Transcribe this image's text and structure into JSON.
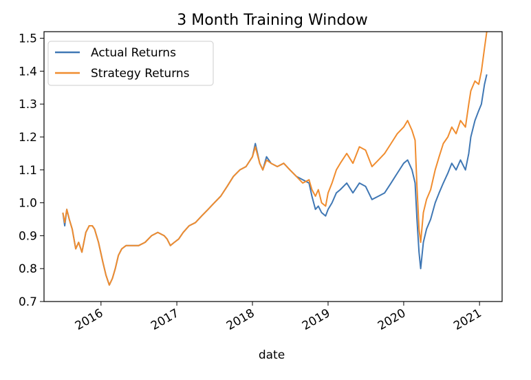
{
  "chart_data": {
    "type": "line",
    "title": "3 Month Training Window",
    "xlabel": "date",
    "ylabel": "",
    "ylim": [
      0.7,
      1.52
    ],
    "xlim": [
      "2015-04-01",
      "2021-04-20"
    ],
    "yticks": [
      0.7,
      0.8,
      0.9,
      1.0,
      1.1,
      1.2,
      1.3,
      1.4,
      1.5
    ],
    "ytick_labels": [
      "0.7",
      "0.8",
      "0.9",
      "1.0",
      "1.1",
      "1.2",
      "1.3",
      "1.4",
      "1.5"
    ],
    "xticks": [
      "2016-01-01",
      "2017-01-01",
      "2018-01-01",
      "2019-01-01",
      "2020-01-01",
      "2021-01-01"
    ],
    "xtick_labels": [
      "2016",
      "2017",
      "2018",
      "2019",
      "2020",
      "2021"
    ],
    "legend_position": "upper-left",
    "grid": false,
    "series": [
      {
        "name": "Actual Returns",
        "color": "#3f77b4",
        "points": [
          [
            "2015-07-01",
            0.97
          ],
          [
            "2015-07-10",
            0.93
          ],
          [
            "2015-07-20",
            0.98
          ],
          [
            "2015-08-01",
            0.95
          ],
          [
            "2015-08-15",
            0.92
          ],
          [
            "2015-09-01",
            0.86
          ],
          [
            "2015-09-15",
            0.88
          ],
          [
            "2015-10-01",
            0.85
          ],
          [
            "2015-10-20",
            0.91
          ],
          [
            "2015-11-05",
            0.93
          ],
          [
            "2015-11-20",
            0.93
          ],
          [
            "2015-12-01",
            0.92
          ],
          [
            "2015-12-20",
            0.88
          ],
          [
            "2016-01-10",
            0.82
          ],
          [
            "2016-01-25",
            0.78
          ],
          [
            "2016-02-10",
            0.75
          ],
          [
            "2016-02-25",
            0.77
          ],
          [
            "2016-03-10",
            0.8
          ],
          [
            "2016-03-25",
            0.84
          ],
          [
            "2016-04-10",
            0.86
          ],
          [
            "2016-05-01",
            0.87
          ],
          [
            "2016-06-01",
            0.87
          ],
          [
            "2016-07-01",
            0.87
          ],
          [
            "2016-08-01",
            0.88
          ],
          [
            "2016-09-01",
            0.9
          ],
          [
            "2016-10-01",
            0.91
          ],
          [
            "2016-11-01",
            0.9
          ],
          [
            "2016-11-15",
            0.89
          ],
          [
            "2016-12-01",
            0.87
          ],
          [
            "2016-12-20",
            0.88
          ],
          [
            "2017-01-10",
            0.89
          ],
          [
            "2017-02-01",
            0.91
          ],
          [
            "2017-03-01",
            0.93
          ],
          [
            "2017-04-01",
            0.94
          ],
          [
            "2017-05-01",
            0.96
          ],
          [
            "2017-06-01",
            0.98
          ],
          [
            "2017-07-01",
            1.0
          ],
          [
            "2017-08-01",
            1.02
          ],
          [
            "2017-09-01",
            1.05
          ],
          [
            "2017-10-01",
            1.08
          ],
          [
            "2017-11-01",
            1.1
          ],
          [
            "2017-12-01",
            1.11
          ],
          [
            "2018-01-01",
            1.14
          ],
          [
            "2018-01-15",
            1.18
          ],
          [
            "2018-02-05",
            1.12
          ],
          [
            "2018-02-20",
            1.1
          ],
          [
            "2018-03-10",
            1.14
          ],
          [
            "2018-04-01",
            1.12
          ],
          [
            "2018-05-01",
            1.11
          ],
          [
            "2018-06-01",
            1.12
          ],
          [
            "2018-07-01",
            1.1
          ],
          [
            "2018-08-01",
            1.08
          ],
          [
            "2018-09-01",
            1.07
          ],
          [
            "2018-10-01",
            1.06
          ],
          [
            "2018-10-15",
            1.02
          ],
          [
            "2018-11-01",
            0.98
          ],
          [
            "2018-11-15",
            0.99
          ],
          [
            "2018-12-01",
            0.97
          ],
          [
            "2018-12-20",
            0.96
          ],
          [
            "2019-01-01",
            0.98
          ],
          [
            "2019-01-20",
            1.0
          ],
          [
            "2019-02-10",
            1.03
          ],
          [
            "2019-03-01",
            1.04
          ],
          [
            "2019-04-01",
            1.06
          ],
          [
            "2019-05-01",
            1.03
          ],
          [
            "2019-06-01",
            1.06
          ],
          [
            "2019-07-01",
            1.05
          ],
          [
            "2019-08-01",
            1.01
          ],
          [
            "2019-09-01",
            1.02
          ],
          [
            "2019-10-01",
            1.03
          ],
          [
            "2019-11-01",
            1.06
          ],
          [
            "2019-12-01",
            1.09
          ],
          [
            "2020-01-01",
            1.12
          ],
          [
            "2020-01-20",
            1.13
          ],
          [
            "2020-02-10",
            1.1
          ],
          [
            "2020-02-25",
            1.06
          ],
          [
            "2020-03-05",
            0.95
          ],
          [
            "2020-03-15",
            0.85
          ],
          [
            "2020-03-23",
            0.8
          ],
          [
            "2020-04-05",
            0.88
          ],
          [
            "2020-04-20",
            0.92
          ],
          [
            "2020-05-10",
            0.95
          ],
          [
            "2020-06-01",
            1.0
          ],
          [
            "2020-06-20",
            1.03
          ],
          [
            "2020-07-10",
            1.06
          ],
          [
            "2020-08-01",
            1.09
          ],
          [
            "2020-08-20",
            1.12
          ],
          [
            "2020-09-10",
            1.1
          ],
          [
            "2020-10-01",
            1.13
          ],
          [
            "2020-10-25",
            1.1
          ],
          [
            "2020-11-10",
            1.15
          ],
          [
            "2020-11-20",
            1.2
          ],
          [
            "2020-12-10",
            1.25
          ],
          [
            "2020-12-28",
            1.28
          ],
          [
            "2021-01-10",
            1.3
          ],
          [
            "2021-01-25",
            1.36
          ],
          [
            "2021-02-05",
            1.39
          ]
        ]
      },
      {
        "name": "Strategy Returns",
        "color": "#f08c2e",
        "points": [
          [
            "2015-07-01",
            0.97
          ],
          [
            "2015-07-10",
            0.94
          ],
          [
            "2015-07-20",
            0.98
          ],
          [
            "2015-08-01",
            0.95
          ],
          [
            "2015-08-15",
            0.92
          ],
          [
            "2015-09-01",
            0.86
          ],
          [
            "2015-09-15",
            0.88
          ],
          [
            "2015-10-01",
            0.85
          ],
          [
            "2015-10-20",
            0.91
          ],
          [
            "2015-11-05",
            0.93
          ],
          [
            "2015-11-20",
            0.93
          ],
          [
            "2015-12-01",
            0.92
          ],
          [
            "2015-12-20",
            0.88
          ],
          [
            "2016-01-10",
            0.82
          ],
          [
            "2016-01-25",
            0.78
          ],
          [
            "2016-02-10",
            0.75
          ],
          [
            "2016-02-25",
            0.77
          ],
          [
            "2016-03-10",
            0.8
          ],
          [
            "2016-03-25",
            0.84
          ],
          [
            "2016-04-10",
            0.86
          ],
          [
            "2016-05-01",
            0.87
          ],
          [
            "2016-06-01",
            0.87
          ],
          [
            "2016-07-01",
            0.87
          ],
          [
            "2016-08-01",
            0.88
          ],
          [
            "2016-09-01",
            0.9
          ],
          [
            "2016-10-01",
            0.91
          ],
          [
            "2016-11-01",
            0.9
          ],
          [
            "2016-11-15",
            0.89
          ],
          [
            "2016-12-01",
            0.87
          ],
          [
            "2016-12-20",
            0.88
          ],
          [
            "2017-01-10",
            0.89
          ],
          [
            "2017-02-01",
            0.91
          ],
          [
            "2017-03-01",
            0.93
          ],
          [
            "2017-04-01",
            0.94
          ],
          [
            "2017-05-01",
            0.96
          ],
          [
            "2017-06-01",
            0.98
          ],
          [
            "2017-07-01",
            1.0
          ],
          [
            "2017-08-01",
            1.02
          ],
          [
            "2017-09-01",
            1.05
          ],
          [
            "2017-10-01",
            1.08
          ],
          [
            "2017-11-01",
            1.1
          ],
          [
            "2017-12-01",
            1.11
          ],
          [
            "2018-01-01",
            1.14
          ],
          [
            "2018-01-15",
            1.17
          ],
          [
            "2018-02-05",
            1.12
          ],
          [
            "2018-02-20",
            1.1
          ],
          [
            "2018-03-10",
            1.13
          ],
          [
            "2018-04-01",
            1.12
          ],
          [
            "2018-05-01",
            1.11
          ],
          [
            "2018-06-01",
            1.12
          ],
          [
            "2018-07-01",
            1.1
          ],
          [
            "2018-08-01",
            1.08
          ],
          [
            "2018-09-01",
            1.06
          ],
          [
            "2018-10-01",
            1.07
          ],
          [
            "2018-10-15",
            1.04
          ],
          [
            "2018-11-01",
            1.02
          ],
          [
            "2018-11-15",
            1.04
          ],
          [
            "2018-12-01",
            1.0
          ],
          [
            "2018-12-20",
            0.99
          ],
          [
            "2019-01-01",
            1.03
          ],
          [
            "2019-01-20",
            1.06
          ],
          [
            "2019-02-10",
            1.1
          ],
          [
            "2019-03-01",
            1.12
          ],
          [
            "2019-04-01",
            1.15
          ],
          [
            "2019-05-01",
            1.12
          ],
          [
            "2019-06-01",
            1.17
          ],
          [
            "2019-07-01",
            1.16
          ],
          [
            "2019-08-01",
            1.11
          ],
          [
            "2019-09-01",
            1.13
          ],
          [
            "2019-10-01",
            1.15
          ],
          [
            "2019-11-01",
            1.18
          ],
          [
            "2019-12-01",
            1.21
          ],
          [
            "2020-01-01",
            1.23
          ],
          [
            "2020-01-20",
            1.25
          ],
          [
            "2020-02-10",
            1.22
          ],
          [
            "2020-02-25",
            1.19
          ],
          [
            "2020-03-05",
            1.05
          ],
          [
            "2020-03-15",
            0.92
          ],
          [
            "2020-03-23",
            0.88
          ],
          [
            "2020-04-05",
            0.97
          ],
          [
            "2020-04-20",
            1.01
          ],
          [
            "2020-05-10",
            1.04
          ],
          [
            "2020-06-01",
            1.1
          ],
          [
            "2020-06-20",
            1.14
          ],
          [
            "2020-07-10",
            1.18
          ],
          [
            "2020-08-01",
            1.2
          ],
          [
            "2020-08-20",
            1.23
          ],
          [
            "2020-09-10",
            1.21
          ],
          [
            "2020-10-01",
            1.25
          ],
          [
            "2020-10-25",
            1.23
          ],
          [
            "2020-11-10",
            1.3
          ],
          [
            "2020-11-20",
            1.34
          ],
          [
            "2020-12-10",
            1.37
          ],
          [
            "2020-12-28",
            1.36
          ],
          [
            "2021-01-10",
            1.4
          ],
          [
            "2021-01-25",
            1.47
          ],
          [
            "2021-02-05",
            1.52
          ]
        ]
      }
    ]
  }
}
